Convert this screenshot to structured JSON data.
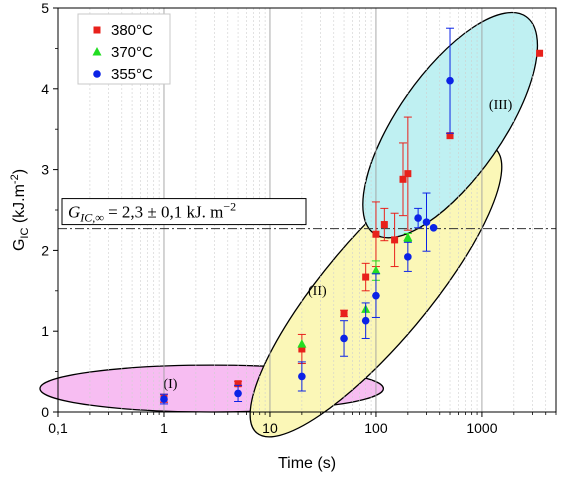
{
  "chart_data": {
    "type": "scatter",
    "xlabel": "Time (s)",
    "ylabel_main": "G",
    "ylabel_sub": "IC",
    "ylabel_rest": " (kJ.m",
    "ylabel_exp": "-2",
    "ylabel_close": ")",
    "x_scale": "log",
    "xlim": [
      0.1,
      5000
    ],
    "ylim": [
      0,
      5
    ],
    "x_ticks": [
      0.1,
      1,
      10,
      100,
      1000
    ],
    "x_tick_labels": [
      "0,1",
      "1",
      "10",
      "100",
      "1000"
    ],
    "y_ticks": [
      0,
      1,
      2,
      3,
      4,
      5
    ],
    "y_tick_labels": [
      "0",
      "1",
      "2",
      "3",
      "4",
      "5"
    ],
    "grid": "vertical",
    "legend_position": "top-left",
    "asymptote": {
      "y": 2.27,
      "style": "dash-dot",
      "label_lhs_main": "G",
      "label_lhs_sub": "IC,∞",
      "label_rhs": " = 2,3 ± 0,1 kJ. m",
      "label_exp": "−2"
    },
    "regions": [
      {
        "label": "(I)",
        "color": "#f7bdf2",
        "cx_log": 0.45,
        "cy": 0.29,
        "rx_dec": 1.62,
        "ry": 0.29,
        "angle_deg": 0,
        "label_x": 1.15,
        "label_y": 0.3
      },
      {
        "label": "(II)",
        "color": "#fbf7b7",
        "cx_log": 2.0,
        "cy": 1.5,
        "rx_dec": 1.75,
        "ry": 0.65,
        "angle_deg": -50,
        "label_x": 28,
        "label_y": 1.45
      },
      {
        "label": "(III)",
        "color": "#bff0f2",
        "cx_log": 2.7,
        "cy": 3.55,
        "rx_dec": 1.25,
        "ry": 0.65,
        "angle_deg": -55,
        "label_x": 1500,
        "label_y": 3.75
      }
    ],
    "series": [
      {
        "name": "380°C",
        "marker": "square",
        "color": "#e8211b",
        "points": [
          {
            "x": 1,
            "y": 0.17,
            "err": 0.05
          },
          {
            "x": 5,
            "y": 0.35,
            "err": 0.03
          },
          {
            "x": 20,
            "y": 0.78,
            "err": 0.18
          },
          {
            "x": 50,
            "y": 1.22,
            "err": 0.04
          },
          {
            "x": 80,
            "y": 1.67,
            "err": 0.17
          },
          {
            "x": 100,
            "y": 2.2,
            "err": 0.4
          },
          {
            "x": 120,
            "y": 2.32,
            "err": 0.2
          },
          {
            "x": 150,
            "y": 2.13,
            "err": 0.33
          },
          {
            "x": 180,
            "y": 2.88,
            "err": 0.45
          },
          {
            "x": 200,
            "y": 2.95,
            "err": 0.7
          },
          {
            "x": 500,
            "y": 3.42,
            "err": 0
          },
          {
            "x": 3500,
            "y": 4.44,
            "err": 0
          }
        ]
      },
      {
        "name": "370°C",
        "marker": "triangle",
        "color": "#22dd22",
        "points": [
          {
            "x": 20,
            "y": 0.84,
            "err": 0
          },
          {
            "x": 80,
            "y": 1.27,
            "err": 0
          },
          {
            "x": 100,
            "y": 1.75,
            "err": 0.12
          },
          {
            "x": 200,
            "y": 2.16,
            "err": 0.05
          }
        ]
      },
      {
        "name": "355°C",
        "marker": "circle",
        "color": "#0b23e6",
        "points": [
          {
            "x": 1,
            "y": 0.16,
            "err": 0.06
          },
          {
            "x": 5,
            "y": 0.23,
            "err": 0.1
          },
          {
            "x": 20,
            "y": 0.44,
            "err": 0.18
          },
          {
            "x": 50,
            "y": 0.91,
            "err": 0.22
          },
          {
            "x": 80,
            "y": 1.13,
            "err": 0.22
          },
          {
            "x": 100,
            "y": 1.44,
            "err": 0.27
          },
          {
            "x": 200,
            "y": 1.92,
            "err": 0.18
          },
          {
            "x": 250,
            "y": 2.4,
            "err": 0.12
          },
          {
            "x": 300,
            "y": 2.35,
            "err": 0.36
          },
          {
            "x": 350,
            "y": 2.28,
            "err": 0
          },
          {
            "x": 500,
            "y": 4.1,
            "err": 0.65
          }
        ]
      }
    ]
  }
}
